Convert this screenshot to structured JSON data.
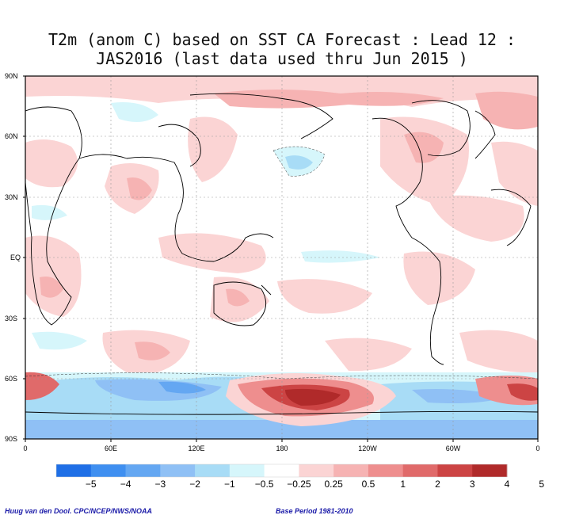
{
  "title_line1": "T2m (anom C) based on SST CA Forecast : Lead 12 :",
  "title_line2": "JAS2016 (last data used thru Jun 2015 )",
  "lat_labels": [
    "90N",
    "60N",
    "30N",
    "EQ",
    "30S",
    "60S",
    "90S"
  ],
  "lon_labels": [
    "0",
    "60E",
    "120E",
    "180",
    "120W",
    "60W",
    "0"
  ],
  "colorbar": {
    "colors": [
      "#1f6fe6",
      "#3f8ff0",
      "#64a7f2",
      "#8fc0f5",
      "#a8dcf6",
      "#d6f6fb",
      "#ffffff",
      "#fbd4d4",
      "#f6b3b3",
      "#ee8e8e",
      "#e06a6a",
      "#cc4444",
      "#b02a2a"
    ],
    "labels": [
      "−5",
      "−4",
      "−3",
      "−2",
      "−1",
      "−0.5",
      "−0.25",
      "0.25",
      "0.5",
      "1",
      "2",
      "3",
      "4",
      "5"
    ]
  },
  "credit": "Huug van den Dool. CPC/NCEP/NWS/NOAA",
  "base_period": "Base Period 1981-2010"
}
